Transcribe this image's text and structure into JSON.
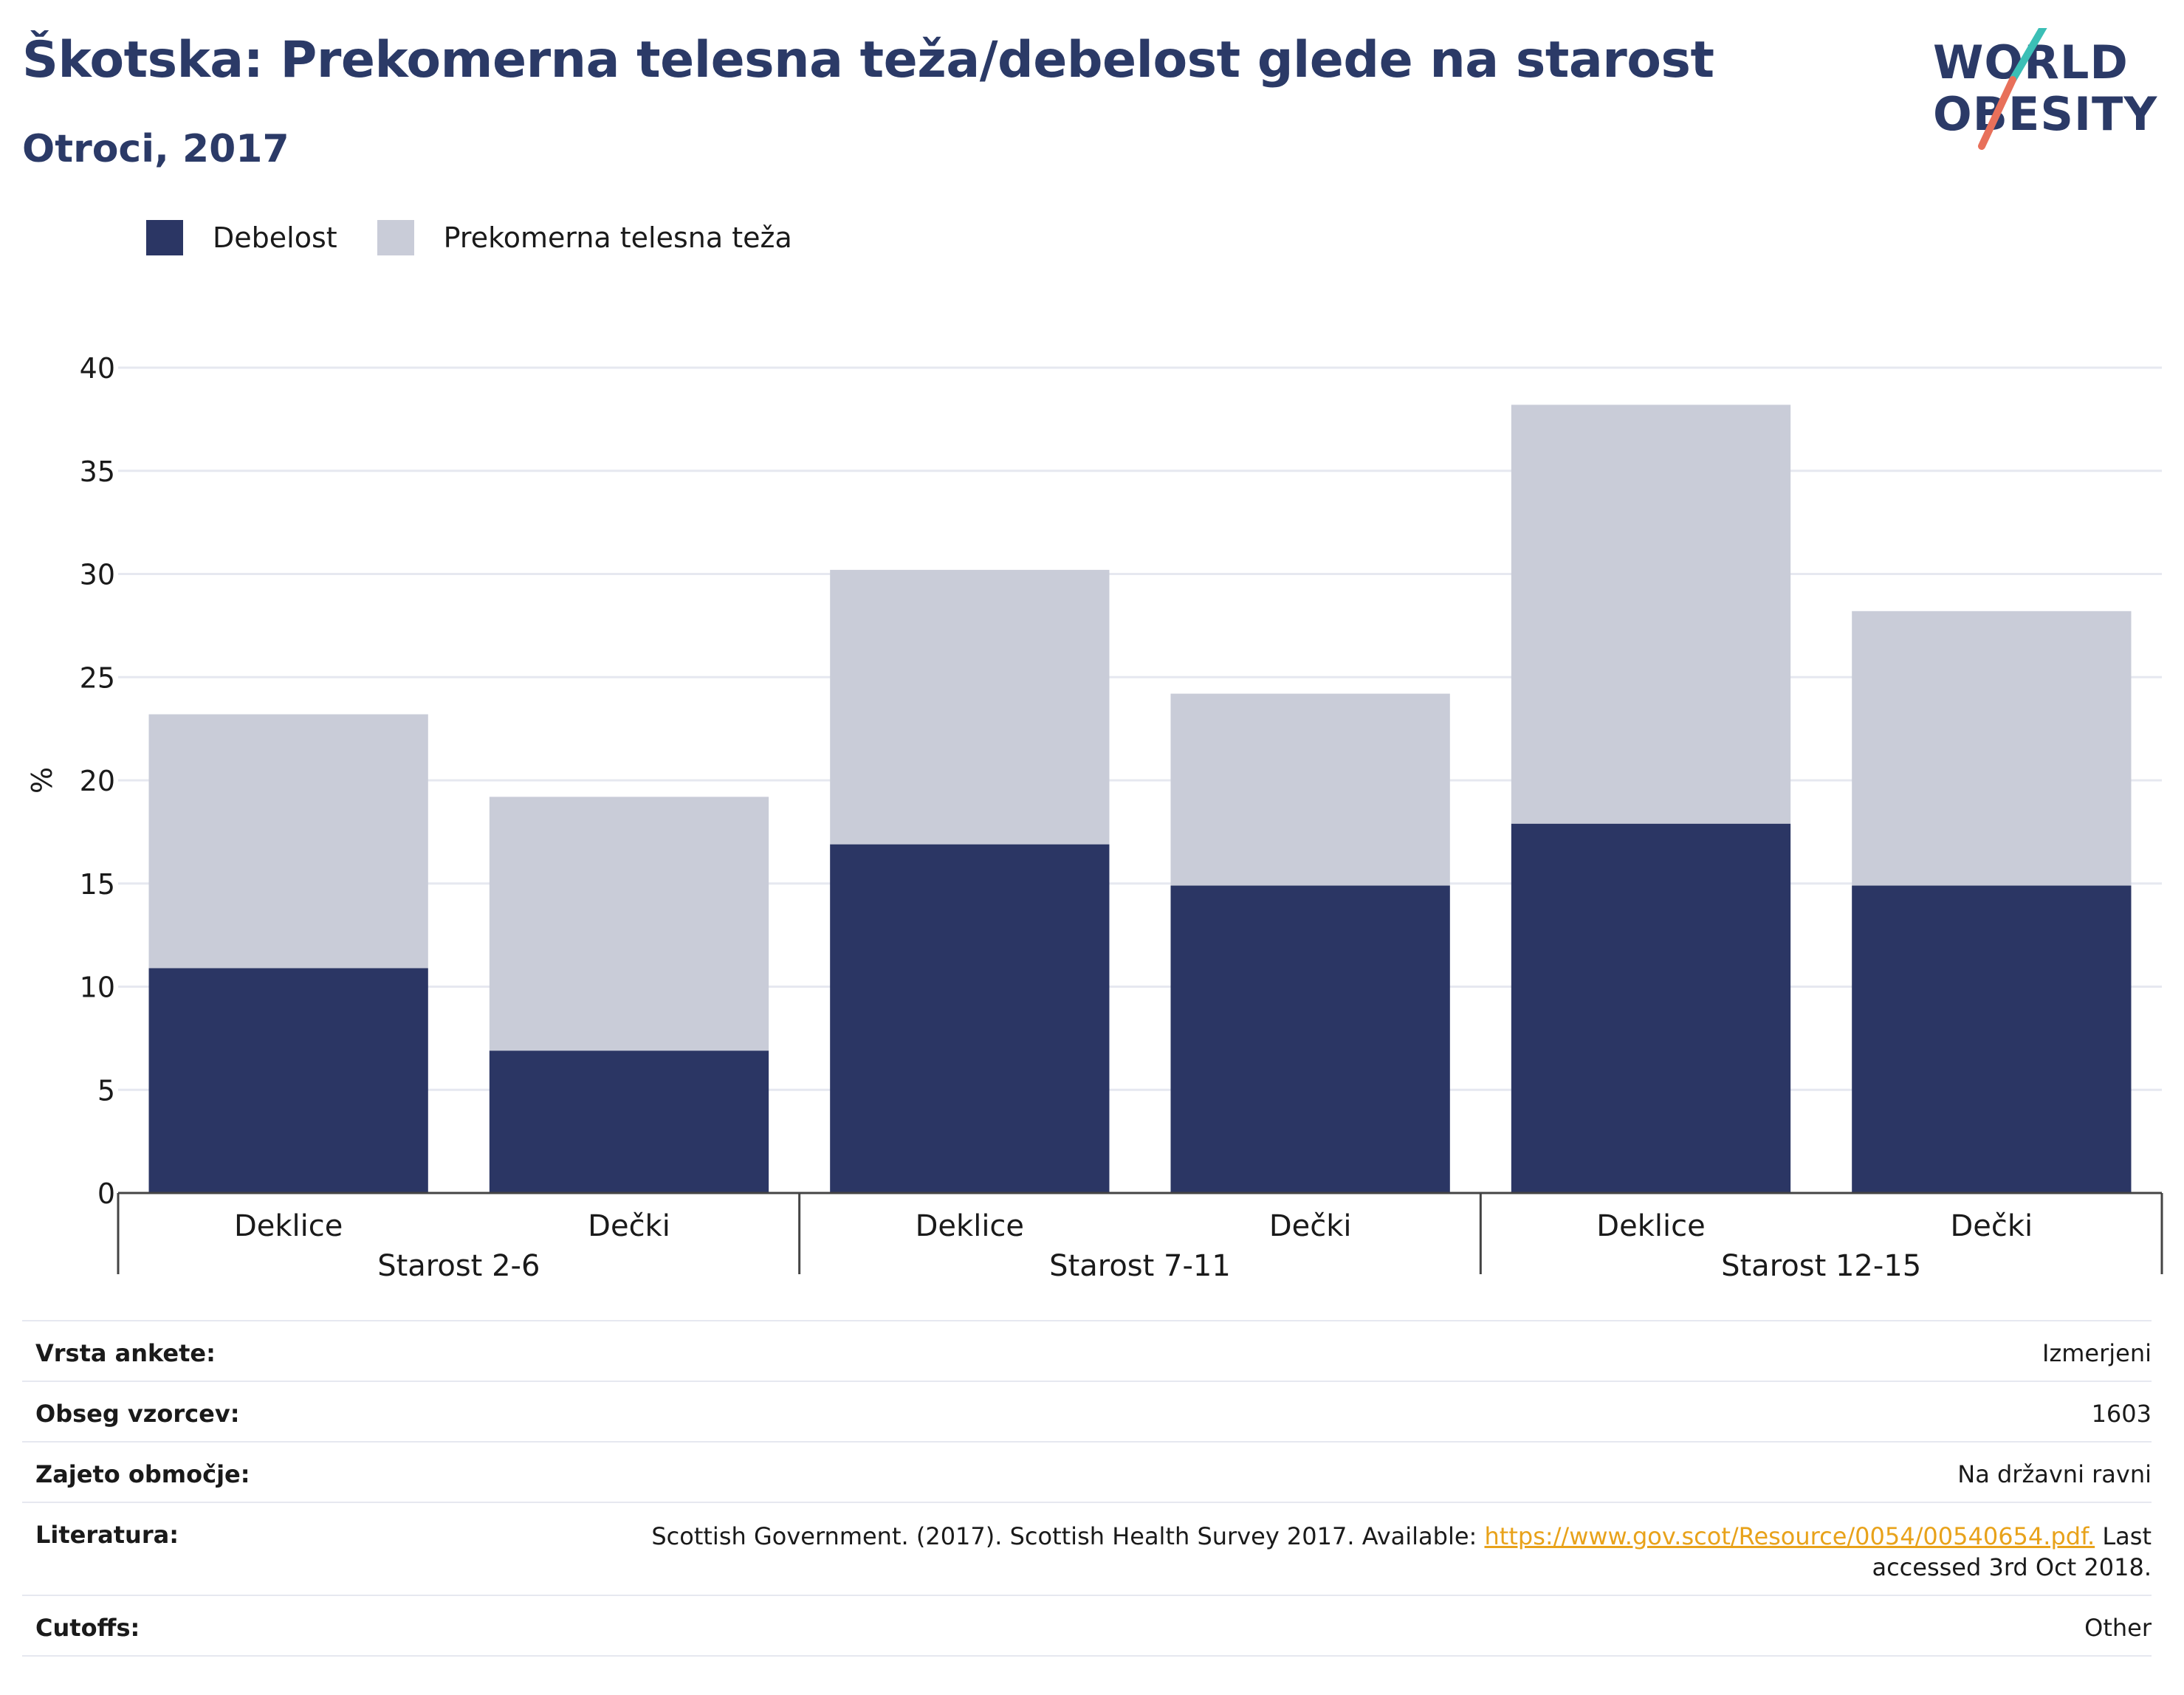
{
  "title": "Škotska: Prekomerna telesna teža/debelost glede na starost",
  "subtitle": "Otroci, 2017",
  "logo": {
    "line1": "WORLD",
    "line2": "OBESITY"
  },
  "legend": [
    {
      "label": "Debelost",
      "color": "#2b3664"
    },
    {
      "label": "Prekomerna telesna teža",
      "color": "#c9ccd8"
    }
  ],
  "chart_data": {
    "type": "bar",
    "stacked": true,
    "ylabel": "%",
    "ylim": [
      0,
      40
    ],
    "yticks": [
      0,
      5,
      10,
      15,
      20,
      25,
      30,
      35,
      40
    ],
    "grid": true,
    "categories": [
      "Deklice",
      "Dečki",
      "Deklice",
      "Dečki",
      "Deklice",
      "Dečki"
    ],
    "groups": [
      {
        "label": "Starost 2-6",
        "categories": [
          "Deklice",
          "Dečki"
        ]
      },
      {
        "label": "Starost 7-11",
        "categories": [
          "Deklice",
          "Dečki"
        ]
      },
      {
        "label": "Starost 12-15",
        "categories": [
          "Deklice",
          "Dečki"
        ]
      }
    ],
    "series": [
      {
        "name": "Debelost",
        "color": "#2b3664",
        "values": [
          10.9,
          6.9,
          16.9,
          14.9,
          17.9,
          14.9
        ]
      },
      {
        "name": "Prekomerna telesna teža",
        "color": "#c9ccd8",
        "values": [
          12.3,
          12.3,
          13.3,
          9.3,
          20.3,
          13.3
        ]
      }
    ]
  },
  "meta": [
    {
      "key": "Vrsta ankete:",
      "value": "Izmerjeni"
    },
    {
      "key": "Obseg vzorcev:",
      "value": "1603"
    },
    {
      "key": "Zajeto območje:",
      "value": "Na državni ravni"
    },
    {
      "key": "Literatura:",
      "value_before": "Scottish Government. (2017). Scottish Health Survey 2017. Available: ",
      "link": "https://www.gov.scot/Resource/0054/00540654.pdf.",
      "value_line2_prefix": " Last",
      "value_line2": "accessed 3rd Oct 2018."
    },
    {
      "key": "Cutoffs:",
      "value": "Other"
    }
  ]
}
